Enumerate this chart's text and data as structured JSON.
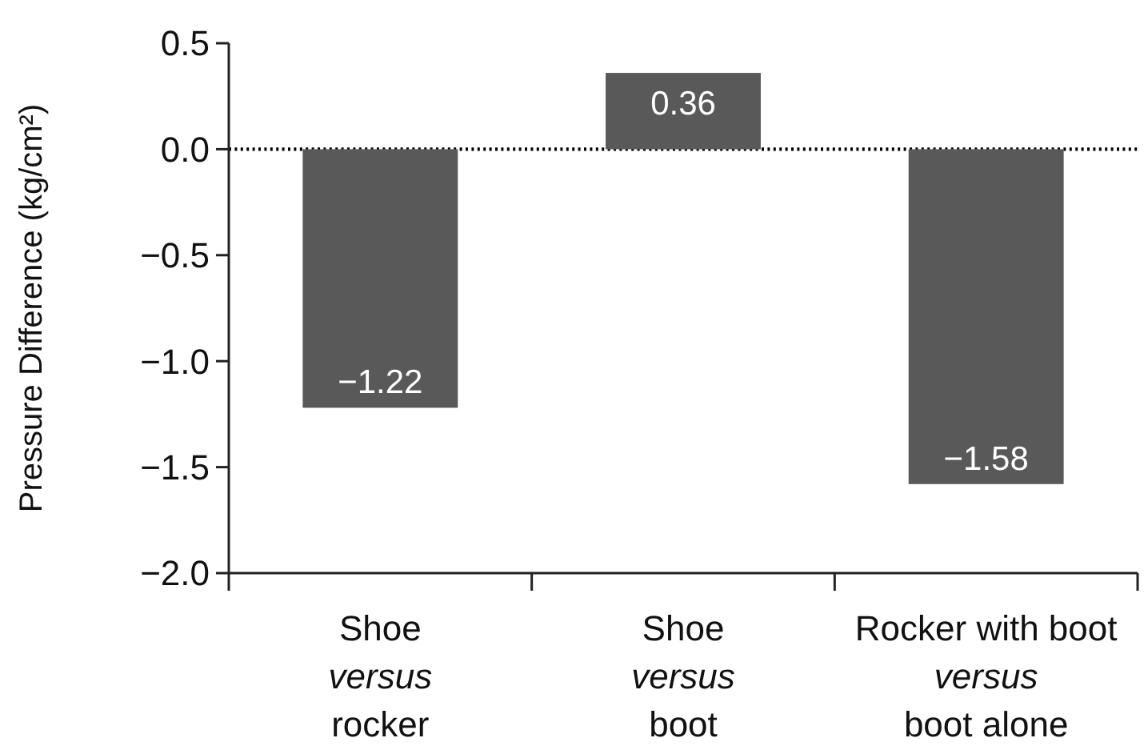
{
  "chart_data": {
    "type": "bar",
    "ylabel": "Pressure Difference (kg/cm²)",
    "categories": [
      "Shoe\nversus\nrocker",
      "Shoe\nversus\nboot",
      "Rocker with boot\nversus\nboot alone"
    ],
    "values": [
      -1.22,
      0.36,
      -1.58
    ],
    "color": "#595959",
    "value_labels": [
      "−1.22",
      "0.36",
      "−1.58"
    ],
    "ylim": [
      -2.0,
      0.5
    ],
    "yticks": [
      0.5,
      {
        "value": 0,
        "label": "0.0"
      },
      {
        "value": -0.5,
        "label": "−0.5"
      },
      {
        "value": -1.0,
        "label": "−1.0"
      },
      {
        "value": -1.5,
        "label": "−1.5"
      },
      {
        "value": -2.0,
        "label": "−2.0"
      }
    ],
    "ref_lines": [
      {
        "axis": "y",
        "value": 0,
        "line_style": "dotted",
        "color": "#000000"
      }
    ]
  }
}
